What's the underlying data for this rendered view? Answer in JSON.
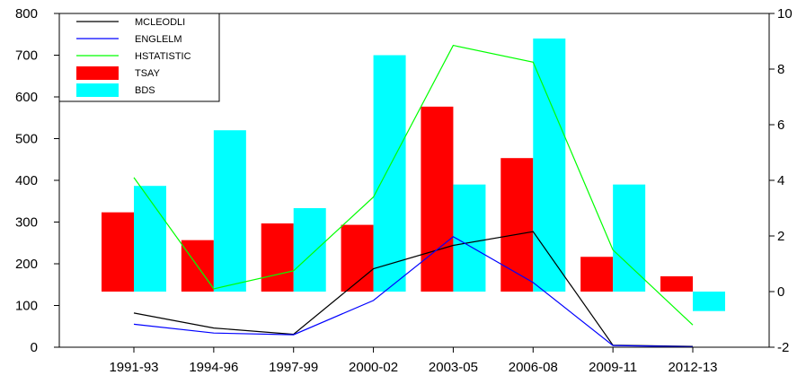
{
  "chart_data": {
    "type": "bar",
    "categories": [
      "1991-93",
      "1994-96",
      "1997-99",
      "2000-02",
      "2003-05",
      "2006-08",
      "2009-11",
      "2012-13"
    ],
    "left_axis": {
      "range": [
        0,
        800
      ],
      "ticks": [
        "0",
        "100",
        "200",
        "300",
        "400",
        "500",
        "600",
        "700",
        "800"
      ]
    },
    "right_axis": {
      "range": [
        -2,
        10
      ],
      "ticks": [
        "-2",
        "0",
        "2",
        "4",
        "6",
        "8",
        "10"
      ]
    },
    "bar_baseline_right": 0,
    "bar_series": [
      {
        "name": "TSAY",
        "color": "#ff0000",
        "axis": "right",
        "values": [
          2.85,
          1.85,
          2.45,
          2.4,
          6.65,
          4.8,
          1.25,
          0.55
        ]
      },
      {
        "name": "BDS",
        "color": "#00ffff",
        "axis": "right",
        "values": [
          3.8,
          5.8,
          3.0,
          8.5,
          3.85,
          9.1,
          3.85,
          -0.7
        ]
      }
    ],
    "line_series": [
      {
        "name": "MCLEODLI",
        "color": "#000000",
        "axis": "left",
        "values": [
          82,
          46,
          31,
          188,
          244,
          277,
          5,
          2
        ]
      },
      {
        "name": "ENGLELM",
        "color": "#0000ff",
        "axis": "left",
        "values": [
          55,
          34,
          30,
          112,
          265,
          155,
          4,
          1
        ]
      },
      {
        "name": "HSTATISTIC",
        "color": "#00ff00",
        "axis": "right",
        "values": [
          4.1,
          0.1,
          0.75,
          3.4,
          8.85,
          8.25,
          1.5,
          -1.2
        ]
      }
    ],
    "legend": {
      "placement": "top-left",
      "entries": [
        {
          "label": "MCLEODLI",
          "kind": "line",
          "color": "#000000"
        },
        {
          "label": "ENGLELM",
          "kind": "line",
          "color": "#0000ff"
        },
        {
          "label": "HSTATISTIC",
          "kind": "line",
          "color": "#00ff00"
        },
        {
          "label": "TSAY",
          "kind": "box",
          "color": "#ff0000"
        },
        {
          "label": "BDS",
          "kind": "box",
          "color": "#00ffff"
        }
      ]
    },
    "grid": false
  }
}
